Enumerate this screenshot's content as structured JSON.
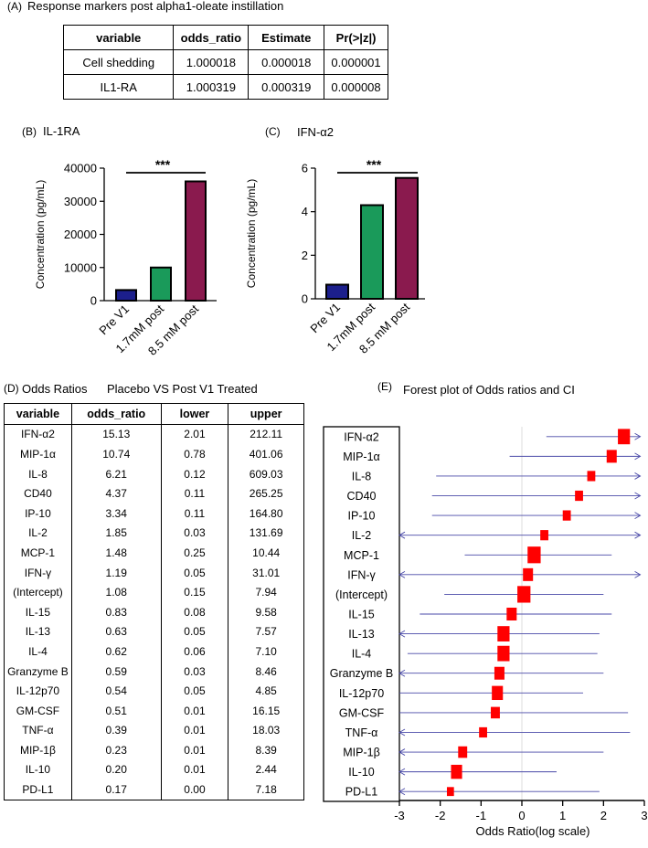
{
  "panel_a": {
    "label": "(A)",
    "title": "Response markers post alpha1-oleate instillation",
    "columns": [
      "variable",
      "odds_ratio",
      "Estimate",
      "Pr(>|z|)"
    ],
    "rows": [
      [
        "Cell shedding",
        "1.000018",
        "0.000018",
        "0.000001"
      ],
      [
        "IL1-RA",
        "1.000319",
        "0.000319",
        "0.000008"
      ]
    ]
  },
  "panel_b": {
    "label": "(B)",
    "title": "IL-1RA"
  },
  "panel_c": {
    "label": "(C)",
    "title": "IFN-α2"
  },
  "panel_d": {
    "label": "(D)",
    "title": "Odds Ratios",
    "subtitle": "Placebo VS Post V1 Treated",
    "columns": [
      "variable",
      "odds_ratio",
      "lower",
      "upper"
    ],
    "rows": [
      [
        "IFN-α2",
        "15.13",
        "2.01",
        "212.11"
      ],
      [
        "MIP-1α",
        "10.74",
        "0.78",
        "401.06"
      ],
      [
        "IL-8",
        "6.21",
        "0.12",
        "609.03"
      ],
      [
        "CD40",
        "4.37",
        "0.11",
        "265.25"
      ],
      [
        "IP-10",
        "3.34",
        "0.11",
        "164.80"
      ],
      [
        "IL-2",
        "1.85",
        "0.03",
        "131.69"
      ],
      [
        "MCP-1",
        "1.48",
        "0.25",
        "10.44"
      ],
      [
        "IFN-γ",
        "1.19",
        "0.05",
        "31.01"
      ],
      [
        "(Intercept)",
        "1.08",
        "0.15",
        "7.94"
      ],
      [
        "IL-15",
        "0.83",
        "0.08",
        "9.58"
      ],
      [
        "IL-13",
        "0.63",
        "0.05",
        "7.57"
      ],
      [
        "IL-4",
        "0.62",
        "0.06",
        "7.10"
      ],
      [
        "Granzyme B",
        "0.59",
        "0.03",
        "8.46"
      ],
      [
        "IL-12p70",
        "0.54",
        "0.05",
        "4.85"
      ],
      [
        "GM-CSF",
        "0.51",
        "0.01",
        "16.15"
      ],
      [
        "TNF-α",
        "0.39",
        "0.01",
        "18.03"
      ],
      [
        "MIP-1β",
        "0.23",
        "0.01",
        "8.39"
      ],
      [
        "IL-10",
        "0.20",
        "0.01",
        "2.44"
      ],
      [
        "PD-L1",
        "0.17",
        "0.00",
        "7.18"
      ]
    ]
  },
  "panel_e": {
    "label": "(E)",
    "title": "Forest plot of Odds ratios and CI"
  },
  "colors": {
    "navy": "#1c1f8c",
    "green": "#1a9a5a",
    "maroon": "#8a1a4e",
    "red": "#ff0000",
    "ci_line": "#4a4aa8"
  },
  "chart_data": [
    {
      "type": "bar",
      "panel": "B",
      "title": "IL-1RA",
      "categories": [
        "Pre V1",
        "1.7mM post",
        "8.5 mM post"
      ],
      "values": [
        3200,
        10000,
        36000
      ],
      "ylabel": "Concentration (pg/mL)",
      "ylim": [
        0,
        40000
      ],
      "yticks": [
        0,
        10000,
        20000,
        30000,
        40000
      ],
      "significance": "***"
    },
    {
      "type": "bar",
      "panel": "C",
      "title": "IFN-α2",
      "categories": [
        "Pre V1",
        "1.7mM post",
        "8.5 mM post"
      ],
      "values": [
        0.65,
        4.3,
        5.55
      ],
      "ylabel": "Concentration (pg/mL)",
      "ylim": [
        0,
        6
      ],
      "yticks": [
        0,
        2,
        4,
        6
      ],
      "significance": "***"
    },
    {
      "type": "forest",
      "panel": "E",
      "title": "Forest plot of Odds ratios and CI",
      "xlabel": "Odds Ratio(log scale)",
      "xlim": [
        -3,
        3
      ],
      "xticks": [
        -3,
        -2,
        -1,
        0,
        1,
        2,
        3
      ],
      "labels": [
        "IFN-α2",
        "MIP-1α",
        "IL-8",
        "CD40",
        "IP-10",
        "IL-2",
        "MCP-1",
        "IFN-γ",
        "(Intercept)",
        "IL-15",
        "IL-13",
        "IL-4",
        "Granzyme B",
        "IL-12p70",
        "GM-CSF",
        "TNF-α",
        "MIP-1β",
        "IL-10",
        "PD-L1"
      ],
      "estimates": [
        2.5,
        2.2,
        1.7,
        1.4,
        1.1,
        0.55,
        0.3,
        0.15,
        0.05,
        -0.25,
        -0.45,
        -0.45,
        -0.55,
        -0.6,
        -0.65,
        -0.95,
        -1.45,
        -1.6,
        -1.75
      ],
      "lower": [
        0.6,
        -0.3,
        -2.1,
        -2.2,
        -2.2,
        -3.0,
        -1.4,
        -3.0,
        -1.9,
        -2.5,
        -3.0,
        -2.8,
        -3.0,
        -3.0,
        -3.0,
        -3.0,
        -3.0,
        -3.0,
        -3.0
      ],
      "upper": [
        2.9,
        2.9,
        2.9,
        2.9,
        2.9,
        2.9,
        2.2,
        2.9,
        2.0,
        2.2,
        1.9,
        1.85,
        2.0,
        1.5,
        2.6,
        2.65,
        2.0,
        0.85,
        1.9
      ],
      "arrow_left": [
        false,
        false,
        false,
        false,
        false,
        true,
        false,
        true,
        false,
        false,
        true,
        false,
        true,
        false,
        false,
        true,
        true,
        true,
        true
      ],
      "arrow_right": [
        true,
        true,
        true,
        true,
        true,
        true,
        false,
        true,
        false,
        false,
        false,
        false,
        false,
        false,
        false,
        false,
        false,
        false,
        false
      ],
      "box_size": [
        1.2,
        1.0,
        0.8,
        0.8,
        0.8,
        0.8,
        1.3,
        1.0,
        1.3,
        1.0,
        1.2,
        1.2,
        1.0,
        1.1,
        0.9,
        0.8,
        0.9,
        1.1,
        0.7
      ]
    }
  ]
}
